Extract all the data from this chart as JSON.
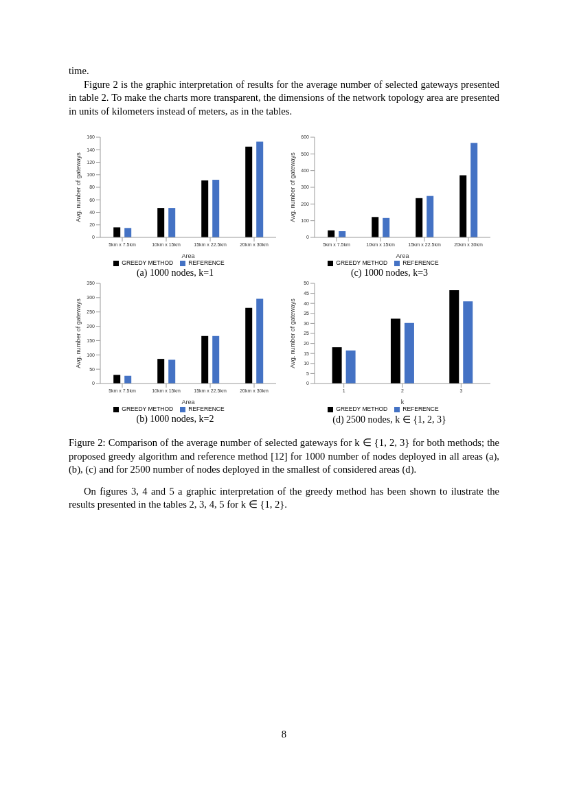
{
  "chart_data": [
    {
      "type": "other",
      "annotations": [
        "time.",
        "Figure 2 is the graphic interpretation of results for the average number of selected gateways presented in table 2.  To make the charts more transparent, the dimensions of the network topology area are presented in units of kilometers instead of meters, as in the tables."
      ]
    },
    {
      "type": "bar",
      "title": "(a) 1000 nodes, k=1",
      "xlabel": "Area",
      "ylabel": "Avg. number of gateways",
      "categories": [
        "5km x 7.5km",
        "10km x 15km",
        "15km x 22.5km",
        "20km x 30km"
      ],
      "series": [
        {
          "name": "GREEDY METHOD",
          "color": "#000000",
          "values": [
            16,
            47,
            91,
            145
          ]
        },
        {
          "name": "REFERENCE",
          "color": "#4472c4",
          "values": [
            15,
            47,
            92,
            153
          ]
        }
      ],
      "ylim": [
        0,
        160
      ],
      "yticks": [
        0,
        20,
        40,
        60,
        80,
        100,
        120,
        140,
        160
      ],
      "legend": "bottom"
    },
    {
      "type": "bar",
      "title": "(c) 1000 nodes, k=3",
      "xlabel": "Area",
      "ylabel": "Avg. number of gateways",
      "categories": [
        "5km x 7.5km",
        "10km x 15km",
        "15km x 22.5km",
        "20km x 30km"
      ],
      "series": [
        {
          "name": "GREEDY METHOD",
          "color": "#000000",
          "values": [
            42,
            122,
            235,
            372
          ]
        },
        {
          "name": "REFERENCE",
          "color": "#4472c4",
          "values": [
            37,
            116,
            248,
            566
          ]
        }
      ],
      "ylim": [
        0,
        600
      ],
      "yticks": [
        0,
        100,
        200,
        300,
        400,
        500,
        600
      ],
      "legend": "bottom"
    },
    {
      "type": "bar",
      "title": "(b) 1000 nodes, k=2",
      "xlabel": "Area",
      "ylabel": "Avg. number of gateways",
      "categories": [
        "5km x 7.5km",
        "10km x 15km",
        "15km x 22.5km",
        "20km x 30km"
      ],
      "series": [
        {
          "name": "GREEDY METHOD",
          "color": "#000000",
          "values": [
            30,
            86,
            166,
            264
          ]
        },
        {
          "name": "REFERENCE",
          "color": "#4472c4",
          "values": [
            27,
            83,
            166,
            296
          ]
        }
      ],
      "ylim": [
        0,
        350
      ],
      "yticks": [
        0,
        50,
        100,
        150,
        200,
        250,
        300,
        350
      ],
      "legend": "bottom"
    },
    {
      "type": "bar",
      "title": "(d) 2500 nodes, k ∈ {1, 2, 3}",
      "xlabel": "k",
      "ylabel": "Avg. number of gateways",
      "categories": [
        "1",
        "2",
        "3"
      ],
      "series": [
        {
          "name": "GREEDY METHOD",
          "color": "#000000",
          "values": [
            18.1,
            32.4,
            46.6
          ]
        },
        {
          "name": "REFERENCE",
          "color": "#4472c4",
          "values": [
            16.5,
            30.2,
            41
          ]
        }
      ],
      "ylim": [
        0,
        50
      ],
      "yticks": [
        0,
        5,
        10,
        15,
        20,
        25,
        30,
        35,
        40,
        45,
        50
      ],
      "legend": "bottom"
    },
    {
      "type": "other",
      "annotations": [
        "Figure 2: Comparison of the average number of selected gateways for k ∈ {1, 2, 3} for both methods; the proposed greedy algorithm and reference method [12] for 1000 number of nodes deployed in all areas (a), (b), (c) and for 2500 number of nodes deployed in the smallest of considered areas (d).",
        "On figures 3, 4 and 5 a graphic interpretation of the greedy method has been shown to ilustrate the results presented in the tables 2, 3, 4, 5 for k ∈ {1, 2}."
      ]
    },
    {
      "type": "other",
      "annotations": [
        "8"
      ]
    }
  ]
}
